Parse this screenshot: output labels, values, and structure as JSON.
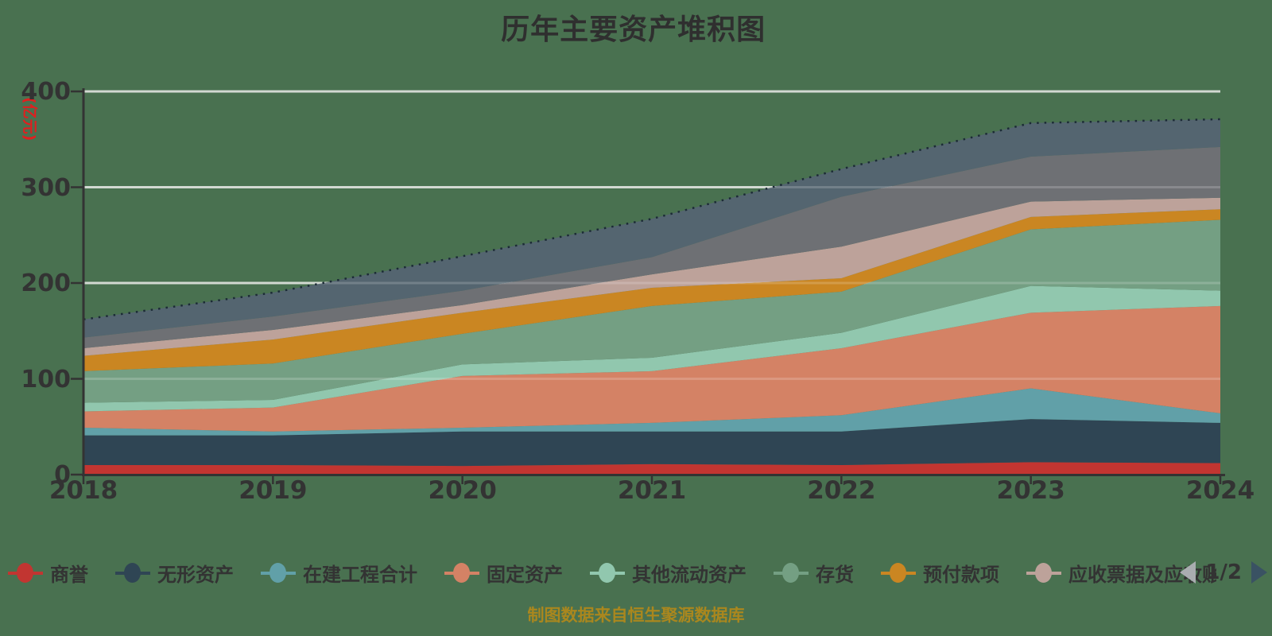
{
  "title": "历年主要资产堆积图",
  "caption": "制图数据来自恒生聚源数据库",
  "colors": {
    "background": "#497150",
    "text": "#333333",
    "axis": "#333333",
    "gridline": "#c9d1c9",
    "gridline_overlay": "rgba(255,255,255,0.18)",
    "caption": "#aa871e",
    "axis_name": "#e01f1f",
    "top_dotted_line": "#1c2b36"
  },
  "chart_data": {
    "type": "area",
    "stacked": true,
    "title": "历年主要资产堆积图",
    "xlabel": "",
    "ylabel": "(亿元)",
    "ylim": [
      0,
      400
    ],
    "y_ticks": [
      0,
      100,
      200,
      300,
      400
    ],
    "grid": true,
    "legend_position": "bottom",
    "categories": [
      "2018",
      "2019",
      "2020",
      "2021",
      "2022",
      "2023",
      "2024"
    ],
    "series": [
      {
        "name": "商誉",
        "color": "#c23531",
        "values": [
          10,
          10,
          9,
          11,
          10,
          13,
          12
        ]
      },
      {
        "name": "无形资产",
        "color": "#2f4554",
        "values": [
          31,
          31,
          36,
          34,
          35,
          45,
          42
        ]
      },
      {
        "name": "在建工程合计",
        "color": "#61a0a8",
        "values": [
          8,
          4,
          4,
          9,
          17,
          32,
          10
        ]
      },
      {
        "name": "固定资产",
        "color": "#d48265",
        "values": [
          17,
          25,
          54,
          54,
          70,
          79,
          112
        ]
      },
      {
        "name": "其他流动资产",
        "color": "#91c7ae",
        "values": [
          9,
          8,
          12,
          14,
          16,
          28,
          16
        ]
      },
      {
        "name": "存货",
        "color": "#749f83",
        "values": [
          33,
          38,
          32,
          54,
          43,
          59,
          74
        ]
      },
      {
        "name": "预付款项",
        "color": "#ca8622",
        "values": [
          16,
          25,
          22,
          19,
          14,
          13,
          11
        ]
      },
      {
        "name": "应收票据及应收账",
        "color": "#bda29a",
        "values": [
          8,
          10,
          8,
          14,
          33,
          16,
          12
        ]
      },
      {
        "name": "",
        "color": "#6e7074",
        "values": [
          11,
          14,
          15,
          18,
          52,
          47,
          53
        ]
      },
      {
        "name": "",
        "color": "#546570",
        "values": [
          19,
          25,
          36,
          40,
          29,
          35,
          29
        ]
      }
    ]
  },
  "legend": {
    "items": [
      {
        "label": "商誉",
        "color": "#c23531",
        "truncated": false
      },
      {
        "label": "无形资产",
        "color": "#2f4554",
        "truncated": false
      },
      {
        "label": "在建工程合计",
        "color": "#61a0a8",
        "truncated": false
      },
      {
        "label": "固定资产",
        "color": "#d48265",
        "truncated": false
      },
      {
        "label": "其他流动资产",
        "color": "#91c7ae",
        "truncated": false
      },
      {
        "label": "存货",
        "color": "#749f83",
        "truncated": false
      },
      {
        "label": "预付款项",
        "color": "#ca8622",
        "truncated": false
      },
      {
        "label": "应收票据及应收账",
        "color": "#bda29a",
        "truncated": true
      }
    ],
    "pagination": {
      "label": "1/2"
    }
  }
}
